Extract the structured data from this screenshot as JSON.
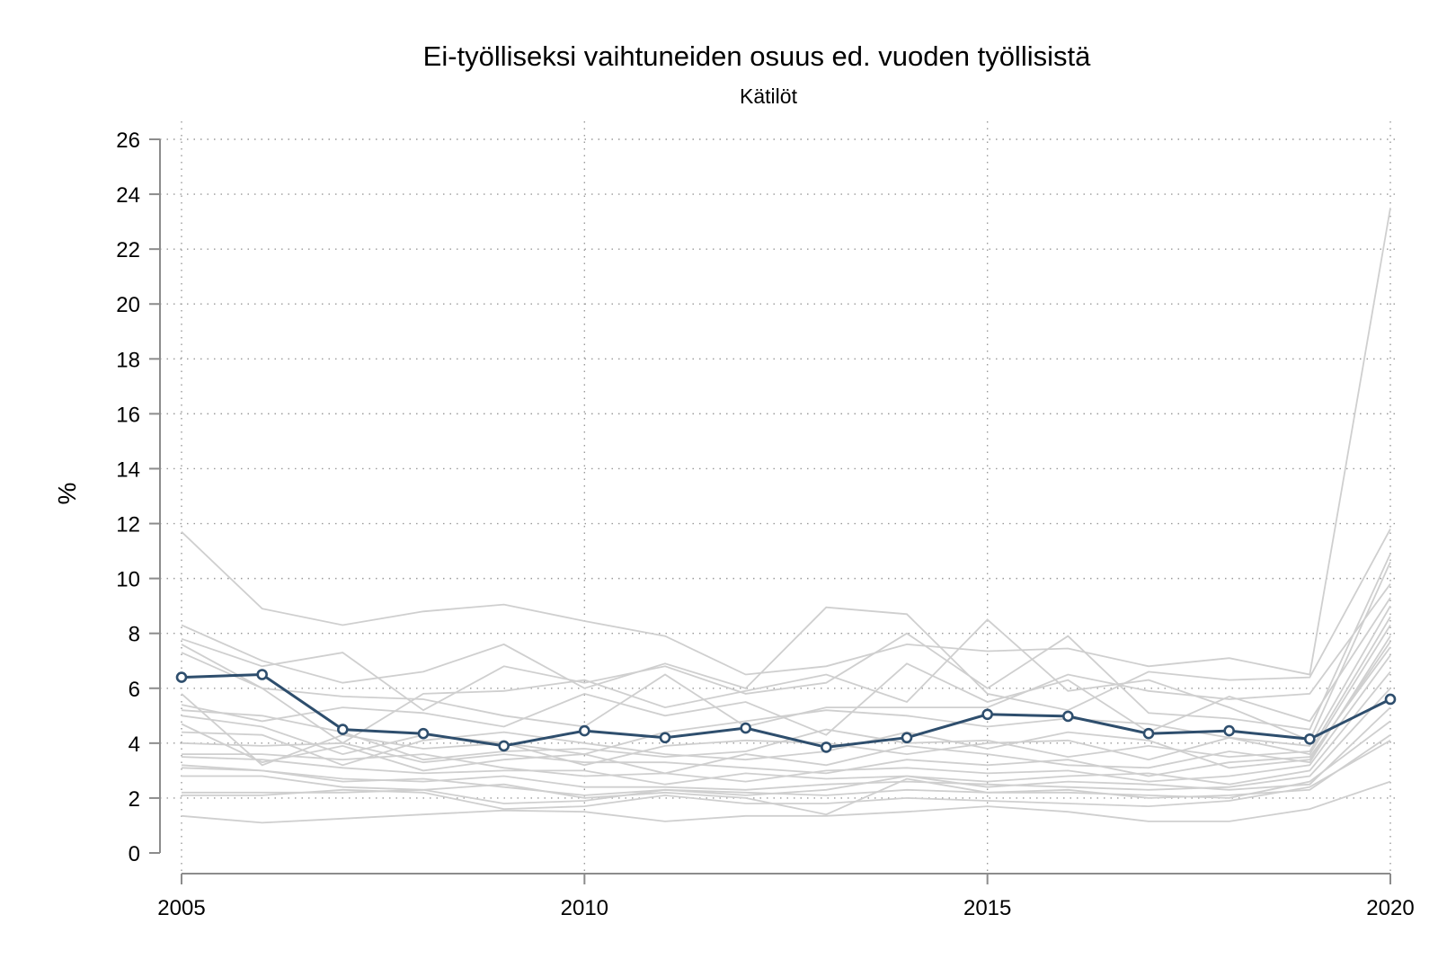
{
  "chart_data": {
    "type": "line",
    "title": "Ei-työlliseksi vaihtuneiden osuus ed. vuoden työllisistä",
    "subtitle": "Kätilöt",
    "xlabel": "",
    "ylabel": "%",
    "xlim": [
      2005,
      2020
    ],
    "ylim": [
      0,
      26
    ],
    "x_ticks": [
      2005,
      2010,
      2015,
      2020
    ],
    "y_ticks": [
      0,
      2,
      4,
      6,
      8,
      10,
      12,
      14,
      16,
      18,
      20,
      22,
      24,
      26
    ],
    "grid": true,
    "legend": "none",
    "colors": {
      "highlight": "#2e4e6d",
      "background": "#cfcfcf"
    },
    "x": [
      2005,
      2006,
      2007,
      2008,
      2009,
      2010,
      2011,
      2012,
      2013,
      2014,
      2015,
      2016,
      2017,
      2018,
      2019,
      2020
    ],
    "highlight_series": {
      "values": [
        6.4,
        6.5,
        4.5,
        4.35,
        3.9,
        4.45,
        4.2,
        4.55,
        3.85,
        4.2,
        5.05,
        4.98,
        4.35,
        4.45,
        4.15,
        5.6
      ]
    },
    "background_series": [
      {
        "values": [
          11.7,
          8.9,
          8.3,
          8.8,
          9.05,
          8.45,
          7.9,
          6.5,
          6.8,
          7.6,
          7.35,
          7.45,
          6.8,
          7.1,
          6.5,
          23.5
        ]
      },
      {
        "values": [
          8.3,
          7.0,
          6.2,
          6.6,
          7.6,
          6.0,
          6.9,
          6.0,
          8.95,
          8.7,
          5.8,
          5.2,
          6.6,
          6.3,
          6.4,
          11.8
        ]
      },
      {
        "values": [
          7.8,
          6.8,
          7.3,
          5.2,
          6.8,
          6.2,
          6.8,
          5.8,
          6.2,
          8.0,
          6.0,
          7.9,
          5.1,
          4.9,
          4.5,
          10.9
        ]
      },
      {
        "values": [
          7.6,
          6.0,
          4.0,
          5.8,
          5.9,
          6.3,
          5.3,
          5.9,
          6.5,
          5.5,
          8.5,
          5.9,
          6.3,
          5.3,
          4.1,
          10.6
        ]
      },
      {
        "values": [
          7.3,
          6.0,
          5.7,
          5.6,
          5.0,
          4.6,
          6.5,
          4.6,
          5.3,
          5.3,
          5.3,
          6.5,
          5.9,
          5.6,
          5.8,
          9.8
        ]
      },
      {
        "values": [
          5.4,
          4.8,
          5.3,
          5.1,
          4.6,
          5.8,
          5.0,
          5.5,
          4.3,
          6.9,
          5.5,
          6.3,
          4.4,
          5.7,
          4.8,
          9.3
        ]
      },
      {
        "values": [
          5.8,
          3.2,
          4.3,
          3.8,
          4.0,
          3.6,
          4.4,
          4.8,
          5.2,
          5.0,
          4.6,
          4.9,
          4.7,
          4.2,
          3.9,
          9.0
        ]
      },
      {
        "values": [
          5.2,
          5.0,
          4.4,
          3.4,
          3.7,
          3.8,
          3.5,
          3.7,
          4.5,
          4.0,
          4.1,
          3.5,
          3.9,
          3.5,
          3.7,
          8.6
        ]
      },
      {
        "values": [
          5.0,
          4.6,
          3.6,
          4.3,
          4.0,
          3.2,
          3.9,
          4.1,
          4.0,
          3.6,
          4.0,
          4.1,
          3.4,
          4.2,
          3.6,
          8.3
        ]
      },
      {
        "values": [
          4.7,
          3.3,
          3.9,
          3.0,
          3.4,
          3.6,
          2.9,
          3.6,
          3.2,
          3.9,
          3.6,
          3.2,
          3.1,
          3.7,
          3.3,
          7.9
        ]
      },
      {
        "values": [
          4.4,
          4.3,
          3.2,
          4.1,
          4.4,
          4.0,
          3.6,
          3.4,
          3.7,
          4.4,
          3.8,
          4.4,
          4.1,
          3.1,
          3.4,
          7.7
        ]
      },
      {
        "values": [
          4.0,
          3.9,
          4.0,
          3.3,
          3.6,
          3.3,
          3.3,
          3.1,
          2.9,
          3.4,
          3.2,
          3.4,
          2.8,
          3.3,
          3.5,
          7.5
        ]
      },
      {
        "values": [
          3.6,
          3.6,
          3.4,
          3.6,
          3.1,
          2.8,
          2.9,
          2.6,
          3.0,
          3.1,
          2.9,
          3.0,
          2.6,
          2.8,
          3.2,
          7.2
        ]
      },
      {
        "values": [
          3.5,
          3.4,
          3.1,
          2.9,
          3.0,
          3.0,
          2.5,
          2.9,
          2.7,
          2.8,
          2.6,
          2.8,
          2.9,
          2.5,
          3.0,
          6.6
        ]
      },
      {
        "values": [
          3.2,
          3.0,
          2.7,
          2.6,
          2.8,
          2.4,
          2.4,
          2.3,
          2.5,
          2.6,
          2.5,
          2.4,
          2.3,
          2.4,
          2.8,
          6.0
        ]
      },
      {
        "values": [
          3.1,
          3.0,
          2.6,
          2.7,
          2.4,
          2.1,
          2.3,
          2.1,
          2.3,
          2.8,
          2.4,
          2.6,
          2.5,
          2.3,
          2.5,
          5.3
        ]
      },
      {
        "values": [
          2.8,
          2.8,
          2.4,
          2.3,
          2.5,
          2.0,
          2.2,
          2.0,
          1.4,
          2.7,
          2.2,
          2.2,
          2.1,
          2.0,
          2.6,
          4.8
        ]
      },
      {
        "values": [
          2.2,
          2.2,
          2.2,
          2.3,
          1.8,
          1.9,
          2.3,
          2.2,
          2.1,
          2.3,
          2.2,
          2.3,
          2.0,
          2.1,
          2.3,
          4.3
        ]
      },
      {
        "values": [
          2.1,
          2.1,
          2.3,
          2.2,
          1.6,
          1.7,
          2.1,
          1.8,
          1.8,
          2.0,
          1.9,
          1.8,
          1.7,
          1.9,
          2.4,
          4.1
        ]
      },
      {
        "values": [
          1.35,
          1.1,
          1.25,
          1.4,
          1.55,
          1.5,
          1.15,
          1.35,
          1.35,
          1.5,
          1.7,
          1.5,
          1.15,
          1.15,
          1.6,
          2.6
        ]
      }
    ]
  }
}
